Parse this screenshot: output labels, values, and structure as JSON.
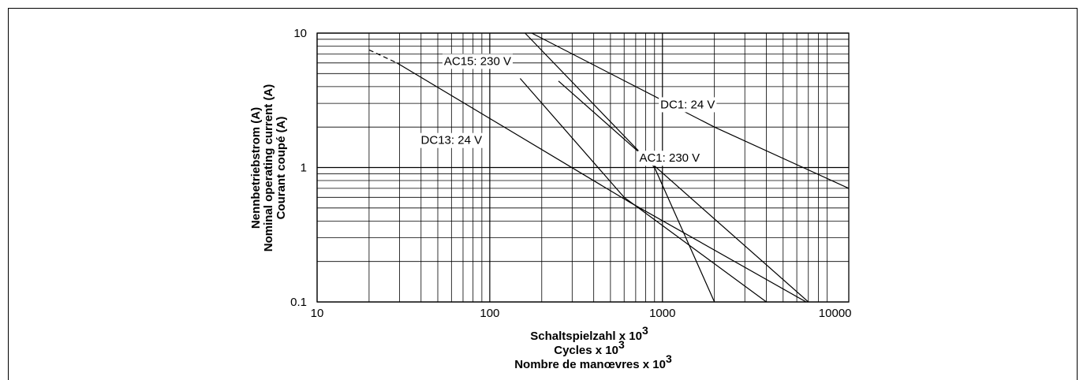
{
  "chart_data": {
    "type": "line",
    "xscale": "log",
    "yscale": "log",
    "xlim": [
      10,
      12000
    ],
    "ylim": [
      0.1,
      10
    ],
    "grid": true,
    "xlabel": [
      "Schaltspielzahl x 10",
      "Cycles x 10",
      "Nombre de manœvres x 10"
    ],
    "xlabel_exponent": "3",
    "ylabel": [
      "Nennbetriebstrom (A)",
      "Nominal operating current (A)",
      "Courant coupé (A)"
    ],
    "x_ticks": [
      {
        "value": 10,
        "label": "10"
      },
      {
        "value": 100,
        "label": "100"
      },
      {
        "value": 1000,
        "label": "1000"
      },
      {
        "value": 10000,
        "label": "10000"
      }
    ],
    "y_ticks": [
      {
        "value": 0.1,
        "label": "0.1"
      },
      {
        "value": 1,
        "label": "1"
      },
      {
        "value": 10,
        "label": "10"
      }
    ],
    "series": [
      {
        "name": "DC1: 24 V",
        "points": [
          [
            175,
            10
          ],
          [
            2000,
            2.0
          ],
          [
            12000,
            0.7
          ]
        ],
        "label_at": [
          1400,
          2.95
        ]
      },
      {
        "name": "AC1: 230 V",
        "points": [
          [
            160,
            10
          ],
          [
            900,
            1.0
          ],
          [
            2000,
            0.1
          ]
        ],
        "label_at": [
          1100,
          1.18
        ]
      },
      {
        "name": "AC15: 230 V",
        "points": [
          [
            150,
            4.6
          ],
          [
            600,
            0.6
          ],
          [
            4000,
            0.1
          ]
        ],
        "label_at": [
          85,
          6.2
        ]
      },
      {
        "name": "DC13: 24 V",
        "points": [
          [
            29,
            6.0
          ],
          [
            650,
            0.55
          ],
          [
            6800,
            0.1
          ]
        ],
        "dashed_points": [
          [
            20,
            7.5
          ],
          [
            29,
            6.0
          ]
        ],
        "label_at": [
          60,
          1.6
        ]
      }
    ],
    "extra_lines": [
      {
        "points": [
          [
            250,
            4.4
          ],
          [
            7000,
            0.1
          ]
        ]
      }
    ]
  }
}
